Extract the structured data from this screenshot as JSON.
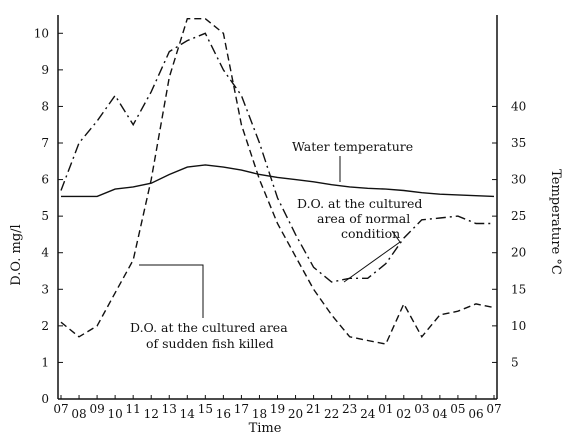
{
  "chart_data": {
    "type": "line",
    "title": "",
    "xlabel": "Time",
    "ylabel_left": "D.O. mg/l",
    "ylabel_right": "Temperature °C",
    "x_ticks": [
      "07",
      "08",
      "09",
      "10",
      "11",
      "12",
      "13",
      "14",
      "15",
      "16",
      "17",
      "18",
      "19",
      "20",
      "21",
      "22",
      "23",
      "24",
      "01",
      "02",
      "03",
      "04",
      "05",
      "06",
      "07"
    ],
    "ylim_left": [
      0,
      10.5
    ],
    "yticks_left": [
      "0",
      "1",
      "2",
      "3",
      "4",
      "5",
      "6",
      "7",
      "8",
      "9",
      "10"
    ],
    "ylim_right": [
      0,
      52.5
    ],
    "yticks_right": [
      "5",
      "10",
      "15",
      "20",
      "25",
      "30",
      "35",
      "40"
    ],
    "series": [
      {
        "name": "D.O. at the cultured area of normal condition",
        "axis": "left",
        "style": "dash-dot",
        "values": [
          5.7,
          7.0,
          7.6,
          8.3,
          7.5,
          8.4,
          9.5,
          9.8,
          10.0,
          9.0,
          8.3,
          7.0,
          5.5,
          4.5,
          3.6,
          3.2,
          3.3,
          3.3,
          3.7,
          4.4,
          4.9,
          4.95,
          5.0,
          4.8,
          4.8
        ]
      },
      {
        "name": "D.O. at the cultured area of sudden fish killed",
        "axis": "left",
        "style": "dashed",
        "values": [
          2.1,
          1.7,
          2.0,
          2.9,
          3.8,
          6.0,
          8.8,
          10.4,
          10.4,
          10.0,
          7.5,
          6.0,
          4.8,
          3.9,
          3.0,
          2.3,
          1.7,
          1.6,
          1.5,
          2.6,
          1.7,
          2.3,
          2.4,
          2.6,
          2.5
        ]
      },
      {
        "name": "Water temperature",
        "axis": "right",
        "style": "solid",
        "values": [
          27.7,
          27.7,
          27.7,
          28.7,
          29.0,
          29.5,
          30.7,
          31.7,
          32.0,
          31.7,
          31.3,
          30.7,
          30.3,
          30.0,
          29.7,
          29.3,
          29.0,
          28.8,
          28.7,
          28.5,
          28.2,
          28.0,
          27.9,
          27.8,
          27.7
        ]
      }
    ],
    "annotations": {
      "water_temperature": "Water temperature",
      "normal_line1": "D.O. at the cultured",
      "normal_line2": "area of normal",
      "normal_line3": "condition",
      "killed_line1": "D.O. at the cultured area",
      "killed_line2": "of sudden fish killed"
    },
    "grid": false,
    "legend": "none"
  }
}
